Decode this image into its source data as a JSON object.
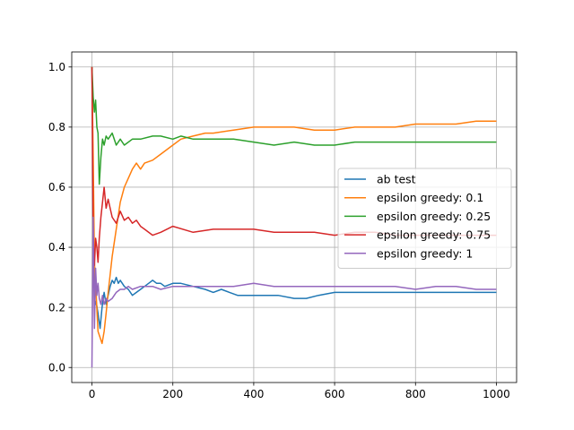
{
  "chart_data": {
    "type": "line",
    "title": "",
    "xlabel": "",
    "ylabel": "",
    "xlim": [
      -50,
      1050
    ],
    "ylim": [
      -0.05,
      1.05
    ],
    "xticks": [
      0,
      200,
      400,
      600,
      800,
      1000
    ],
    "yticks": [
      0.0,
      0.2,
      0.4,
      0.6,
      0.8,
      1.0
    ],
    "xtick_labels": [
      "0",
      "200",
      "400",
      "600",
      "800",
      "1000"
    ],
    "ytick_labels": [
      "0.0",
      "0.2",
      "0.4",
      "0.6",
      "0.8",
      "1.0"
    ],
    "grid": true,
    "legend_position": "center-right",
    "series": [
      {
        "name": "ab test",
        "color": "#1f77b4",
        "x": [
          0,
          3,
          6,
          10,
          15,
          20,
          25,
          30,
          35,
          40,
          45,
          50,
          55,
          60,
          65,
          70,
          80,
          90,
          100,
          110,
          120,
          130,
          140,
          150,
          160,
          170,
          180,
          200,
          220,
          250,
          280,
          300,
          320,
          340,
          360,
          380,
          400,
          430,
          460,
          500,
          530,
          560,
          600,
          650,
          700,
          750,
          800,
          850,
          900,
          950,
          1000
        ],
        "y": [
          1.0,
          0.55,
          0.2,
          0.22,
          0.18,
          0.13,
          0.2,
          0.25,
          0.21,
          0.24,
          0.27,
          0.29,
          0.28,
          0.3,
          0.28,
          0.29,
          0.27,
          0.26,
          0.24,
          0.25,
          0.26,
          0.27,
          0.28,
          0.29,
          0.28,
          0.28,
          0.27,
          0.28,
          0.28,
          0.27,
          0.26,
          0.25,
          0.26,
          0.25,
          0.24,
          0.24,
          0.24,
          0.24,
          0.24,
          0.23,
          0.23,
          0.24,
          0.25,
          0.25,
          0.25,
          0.25,
          0.25,
          0.25,
          0.25,
          0.25,
          0.25
        ]
      },
      {
        "name": "epsilon greedy: 0.1",
        "color": "#ff7f0e",
        "x": [
          0,
          3,
          6,
          10,
          15,
          20,
          25,
          30,
          35,
          40,
          50,
          60,
          70,
          80,
          90,
          100,
          110,
          120,
          130,
          150,
          170,
          200,
          220,
          250,
          280,
          300,
          350,
          400,
          450,
          500,
          550,
          600,
          650,
          700,
          750,
          800,
          850,
          900,
          950,
          1000
        ],
        "y": [
          1.0,
          0.7,
          0.35,
          0.25,
          0.12,
          0.1,
          0.08,
          0.12,
          0.18,
          0.25,
          0.37,
          0.46,
          0.55,
          0.6,
          0.63,
          0.66,
          0.68,
          0.66,
          0.68,
          0.69,
          0.71,
          0.74,
          0.76,
          0.77,
          0.78,
          0.78,
          0.79,
          0.8,
          0.8,
          0.8,
          0.79,
          0.79,
          0.8,
          0.8,
          0.8,
          0.81,
          0.81,
          0.81,
          0.82,
          0.82
        ]
      },
      {
        "name": "epsilon greedy: 0.25",
        "color": "#2ca02c",
        "x": [
          0,
          3,
          6,
          9,
          12,
          15,
          18,
          22,
          26,
          30,
          35,
          40,
          50,
          60,
          70,
          80,
          100,
          120,
          150,
          170,
          200,
          220,
          250,
          280,
          300,
          350,
          400,
          450,
          500,
          550,
          600,
          650,
          700,
          750,
          800,
          850,
          900,
          950,
          1000
        ],
        "y": [
          1.0,
          0.9,
          0.85,
          0.89,
          0.8,
          0.78,
          0.61,
          0.7,
          0.76,
          0.74,
          0.77,
          0.76,
          0.78,
          0.74,
          0.76,
          0.74,
          0.76,
          0.76,
          0.77,
          0.77,
          0.76,
          0.77,
          0.76,
          0.76,
          0.76,
          0.76,
          0.75,
          0.74,
          0.75,
          0.74,
          0.74,
          0.75,
          0.75,
          0.75,
          0.75,
          0.75,
          0.75,
          0.75,
          0.75
        ]
      },
      {
        "name": "epsilon greedy: 0.75",
        "color": "#d62728",
        "x": [
          0,
          3,
          6,
          9,
          12,
          15,
          18,
          22,
          26,
          30,
          35,
          40,
          45,
          50,
          60,
          70,
          80,
          90,
          100,
          110,
          120,
          130,
          150,
          170,
          200,
          250,
          300,
          350,
          400,
          450,
          500,
          550,
          600,
          650,
          700,
          750,
          800,
          850,
          900,
          950,
          1000
        ],
        "y": [
          1.0,
          0.43,
          0.34,
          0.43,
          0.4,
          0.35,
          0.43,
          0.5,
          0.55,
          0.6,
          0.53,
          0.56,
          0.53,
          0.5,
          0.48,
          0.52,
          0.49,
          0.5,
          0.48,
          0.49,
          0.47,
          0.46,
          0.44,
          0.45,
          0.47,
          0.45,
          0.46,
          0.46,
          0.46,
          0.45,
          0.45,
          0.45,
          0.44,
          0.45,
          0.45,
          0.44,
          0.44,
          0.44,
          0.44,
          0.44,
          0.44
        ]
      },
      {
        "name": "epsilon greedy: 1",
        "color": "#9467bd",
        "x": [
          0,
          3,
          6,
          9,
          12,
          15,
          18,
          22,
          26,
          30,
          35,
          40,
          50,
          60,
          70,
          80,
          90,
          100,
          120,
          150,
          170,
          200,
          250,
          300,
          350,
          400,
          450,
          500,
          550,
          600,
          650,
          700,
          750,
          800,
          850,
          900,
          950,
          1000
        ],
        "y": [
          0.0,
          0.5,
          0.13,
          0.33,
          0.24,
          0.28,
          0.23,
          0.21,
          0.24,
          0.21,
          0.23,
          0.22,
          0.23,
          0.25,
          0.26,
          0.26,
          0.27,
          0.26,
          0.27,
          0.27,
          0.26,
          0.27,
          0.27,
          0.27,
          0.27,
          0.28,
          0.27,
          0.27,
          0.27,
          0.27,
          0.27,
          0.27,
          0.27,
          0.26,
          0.27,
          0.27,
          0.26,
          0.26
        ]
      }
    ]
  }
}
